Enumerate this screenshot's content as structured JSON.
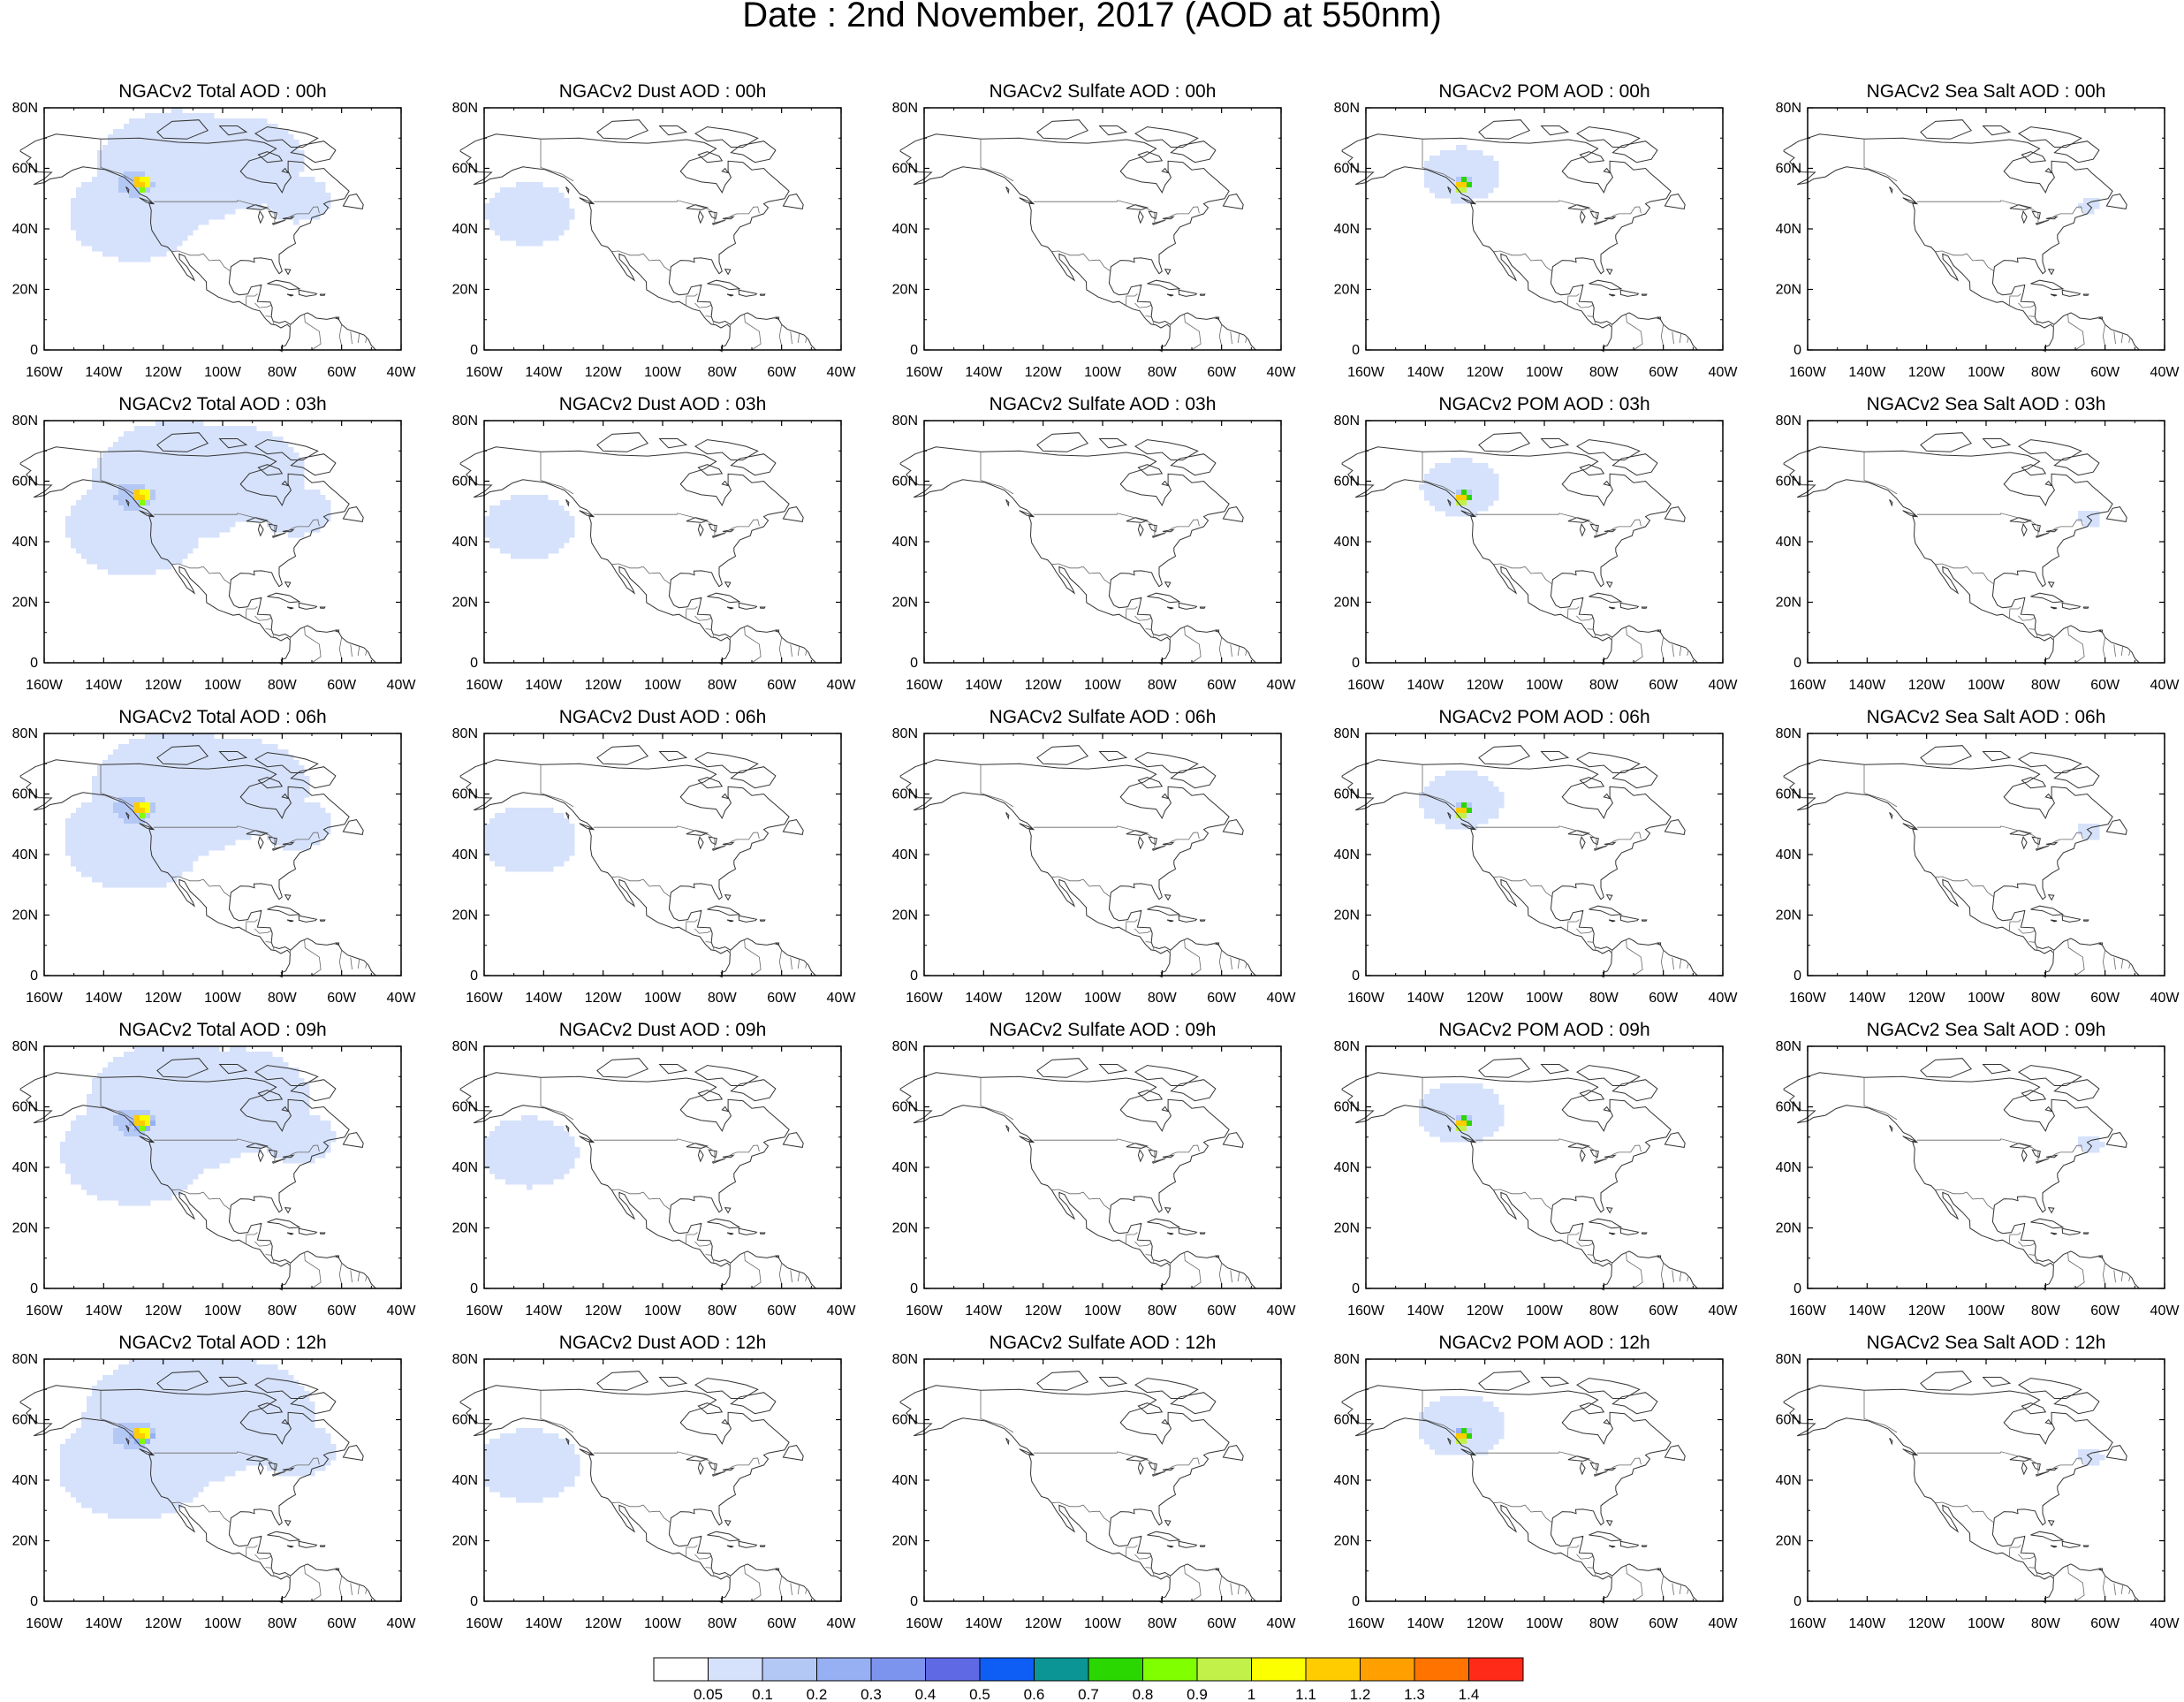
{
  "title": "Date : 2nd November, 2017 (AOD at 550nm)",
  "x_ticks": [
    "160W",
    "140W",
    "120W",
    "100W",
    "80W",
    "60W",
    "40W"
  ],
  "y_ticks": [
    "0",
    "20N",
    "40N",
    "60N",
    "80N"
  ],
  "species": [
    {
      "key": "total",
      "field": "Total AOD"
    },
    {
      "key": "dust",
      "field": "Dust AOD"
    },
    {
      "key": "sulfate",
      "field": "Sulfate AOD"
    },
    {
      "key": "pom",
      "field": "POM AOD"
    },
    {
      "key": "seasalt",
      "field": "Sea Salt AOD"
    }
  ],
  "panels": [
    [
      "NGACv2 Total AOD : 00h",
      "NGACv2 Dust AOD : 00h",
      "NGACv2 Sulfate AOD : 00h",
      "NGACv2 POM AOD : 00h",
      "NGACv2 Sea Salt AOD : 00h"
    ],
    [
      "NGACv2 Total AOD : 03h",
      "NGACv2 Dust AOD : 03h",
      "NGACv2 Sulfate AOD : 03h",
      "NGACv2 POM AOD : 03h",
      "NGACv2 Sea Salt AOD : 03h"
    ],
    [
      "NGACv2 Total AOD : 06h",
      "NGACv2 Dust AOD : 06h",
      "NGACv2 Sulfate AOD : 06h",
      "NGACv2 POM AOD : 06h",
      "NGACv2 Sea Salt AOD : 06h"
    ],
    [
      "NGACv2 Total AOD : 09h",
      "NGACv2 Dust AOD : 09h",
      "NGACv2 Sulfate AOD : 09h",
      "NGACv2 POM AOD : 09h",
      "NGACv2 Sea Salt  AOD : 09h"
    ],
    [
      "NGACv2 Total AOD  : 12h",
      "NGACv2 Dust AOD : 12h",
      "NGACv2 Sulfate AOD : 12h",
      "NGACv2 POM  AOD : 12h",
      "NGACv2 Sea Salt  AOD : 12h"
    ]
  ],
  "colorbar": {
    "labels": [
      "0.05",
      "0.1",
      "0.2",
      "0.3",
      "0.4",
      "0.5",
      "0.6",
      "0.7",
      "0.8",
      "0.9",
      "1",
      "1.1",
      "1.2",
      "1.3",
      "1.4"
    ],
    "colors": [
      "#ffffff",
      "#d6e2fb",
      "#b4c8f6",
      "#96b0f3",
      "#7d94ef",
      "#5f69e4",
      "#0e5ef5",
      "#0c9595",
      "#2ad700",
      "#80ff00",
      "#c2f24a",
      "#fbff00",
      "#ffcc00",
      "#ff9f00",
      "#ff7400",
      "#ff2a18"
    ]
  },
  "map_extent": {
    "lon_range": [
      -160,
      -40
    ],
    "lat_range": [
      0,
      80
    ]
  }
}
